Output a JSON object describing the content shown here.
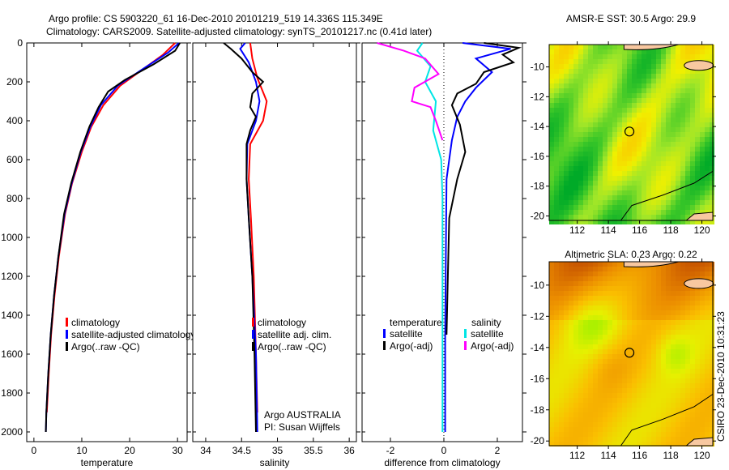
{
  "title_line1": "Argo profile: CS 5903220_61 16-Dec-2010 20101219_519 14.336S 115.349E",
  "title_line2": "Climatology: CARS2009. Satellite-adjusted climatology: synTS_20101217.nc (0.41d later)",
  "side_stamp": "CSIRO 23-Dec-2010 10:31:23",
  "colors": {
    "climatology": "#ff0000",
    "satellite": "#0000ff",
    "argo": "#000000",
    "sal_satellite": "#00e5e5",
    "sal_argo": "#ff00ff"
  },
  "chart_data": [
    {
      "type": "line",
      "id": "temperature",
      "xlabel": "temperature",
      "ylabel": "",
      "xlim": [
        -1.5,
        32
      ],
      "ylim": [
        2050,
        0
      ],
      "xticks": [
        "0",
        "10",
        "20",
        "30"
      ],
      "xtick_values": [
        0,
        10,
        20,
        30
      ],
      "yticks": [
        "0",
        "200",
        "400",
        "600",
        "800",
        "1000",
        "1200",
        "1400",
        "1600",
        "1800",
        "2000"
      ],
      "ytick_values": [
        0,
        200,
        400,
        600,
        800,
        1000,
        1200,
        1400,
        1600,
        1800,
        2000
      ],
      "legend": [
        "climatology",
        "satellite-adjusted climatology",
        "Argo(..raw -QC)"
      ],
      "series": [
        {
          "name": "climatology",
          "color": "#ff0000",
          "points": [
            [
              29.5,
              0
            ],
            [
              27,
              60
            ],
            [
              22.5,
              140
            ],
            [
              18,
              220
            ],
            [
              14.5,
              320
            ],
            [
              12,
              430
            ],
            [
              10,
              560
            ],
            [
              8,
              720
            ],
            [
              6.5,
              880
            ],
            [
              5.2,
              1100
            ],
            [
              4.3,
              1300
            ],
            [
              3.6,
              1500
            ],
            [
              3.1,
              1700
            ],
            [
              2.7,
              1900
            ]
          ]
        },
        {
          "name": "satellite-adjusted climatology",
          "color": "#0000ff",
          "points": [
            [
              30.3,
              0
            ],
            [
              28,
              50
            ],
            [
              23,
              130
            ],
            [
              17.5,
              220
            ],
            [
              14,
              320
            ],
            [
              11.8,
              430
            ],
            [
              9.8,
              560
            ],
            [
              7.9,
              720
            ],
            [
              6.4,
              880
            ],
            [
              5.1,
              1100
            ],
            [
              4.2,
              1300
            ],
            [
              3.5,
              1500
            ],
            [
              3,
              1700
            ],
            [
              2.6,
              1900
            ],
            [
              2.5,
              2000
            ]
          ]
        },
        {
          "name": "Argo(..raw -QC)",
          "color": "#000000",
          "points": [
            [
              30.5,
              0
            ],
            [
              29.5,
              40
            ],
            [
              25,
              110
            ],
            [
              19,
              190
            ],
            [
              15.5,
              250
            ],
            [
              13.5,
              330
            ],
            [
              11.6,
              430
            ],
            [
              9.7,
              560
            ],
            [
              7.8,
              720
            ],
            [
              6.3,
              880
            ],
            [
              5.1,
              1100
            ],
            [
              4.2,
              1300
            ],
            [
              3.5,
              1500
            ],
            [
              3,
              1700
            ],
            [
              2.6,
              1900
            ],
            [
              2.5,
              2000
            ]
          ]
        }
      ]
    },
    {
      "type": "line",
      "id": "salinity",
      "xlabel": "salinity",
      "xlim": [
        33.82,
        36.1
      ],
      "ylim": [
        2050,
        0
      ],
      "xticks": [
        "34",
        "34.5",
        "35",
        "35.5",
        "36"
      ],
      "xtick_values": [
        34,
        34.5,
        35,
        35.5,
        36
      ],
      "legend": [
        "climatology",
        "satellite adj. clim.",
        "Argo(..raw -QC)"
      ],
      "annotation": [
        "Argo AUSTRALIA",
        "PI: Susan Wijffels"
      ],
      "series": [
        {
          "name": "climatology",
          "color": "#ff0000",
          "points": [
            [
              34.62,
              0
            ],
            [
              34.65,
              80
            ],
            [
              34.72,
              180
            ],
            [
              34.85,
              300
            ],
            [
              34.8,
              400
            ],
            [
              34.62,
              520
            ],
            [
              34.6,
              700
            ],
            [
              34.63,
              900
            ],
            [
              34.67,
              1200
            ],
            [
              34.7,
              1600
            ],
            [
              34.72,
              1900
            ]
          ]
        },
        {
          "name": "satellite adj. clim.",
          "color": "#0000ff",
          "points": [
            [
              34.55,
              0
            ],
            [
              34.48,
              30
            ],
            [
              34.6,
              100
            ],
            [
              34.7,
              200
            ],
            [
              34.75,
              300
            ],
            [
              34.7,
              400
            ],
            [
              34.58,
              520
            ],
            [
              34.57,
              700
            ],
            [
              34.6,
              900
            ],
            [
              34.65,
              1200
            ],
            [
              34.7,
              1600
            ],
            [
              34.72,
              2000
            ]
          ]
        },
        {
          "name": "Argo(..raw -QC)",
          "color": "#000000",
          "points": [
            [
              34.25,
              0
            ],
            [
              34.35,
              30
            ],
            [
              34.5,
              80
            ],
            [
              34.65,
              150
            ],
            [
              34.8,
              200
            ],
            [
              34.65,
              260
            ],
            [
              34.62,
              330
            ],
            [
              34.7,
              380
            ],
            [
              34.62,
              450
            ],
            [
              34.57,
              520
            ],
            [
              34.57,
              700
            ],
            [
              34.6,
              900
            ],
            [
              34.65,
              1200
            ],
            [
              34.68,
              1600
            ],
            [
              34.7,
              2000
            ]
          ]
        }
      ]
    },
    {
      "type": "line",
      "id": "difference",
      "xlabel": "difference from climatology",
      "xlim": [
        -3.06,
        2.94
      ],
      "ylim": [
        2050,
        0
      ],
      "xticks": [
        "-2",
        "0",
        "2"
      ],
      "xtick_values": [
        -2,
        0,
        2
      ],
      "legend_temperature": {
        "title": "temperature",
        "items": [
          "satellite",
          "Argo(-adj)"
        ]
      },
      "legend_salinity": {
        "title": "salinity",
        "items": [
          "satellite",
          "Argo(-adj)"
        ]
      },
      "series": [
        {
          "name": "temperature satellite",
          "color": "#0000ff",
          "points": [
            [
              0.7,
              0
            ],
            [
              2.5,
              30
            ],
            [
              1.2,
              80
            ],
            [
              1.8,
              150
            ],
            [
              1.2,
              230
            ],
            [
              0.8,
              300
            ],
            [
              0.5,
              380
            ],
            [
              0.3,
              500
            ],
            [
              0.1,
              700
            ],
            [
              0.08,
              1000
            ],
            [
              0.05,
              1500
            ],
            [
              0.05,
              2000
            ]
          ]
        },
        {
          "name": "temperature Argo(-adj)",
          "color": "#000000",
          "points": [
            [
              1.5,
              0
            ],
            [
              2.8,
              25
            ],
            [
              2.2,
              60
            ],
            [
              2.6,
              100
            ],
            [
              1.5,
              150
            ],
            [
              1.2,
              210
            ],
            [
              0.5,
              260
            ],
            [
              0.3,
              320
            ],
            [
              0.6,
              420
            ],
            [
              0.8,
              560
            ],
            [
              0.5,
              700
            ],
            [
              0.2,
              900
            ],
            [
              0.15,
              1200
            ],
            [
              0.1,
              1500
            ]
          ]
        },
        {
          "name": "salinity satellite",
          "color": "#00e5e5",
          "points": [
            [
              -0.8,
              0
            ],
            [
              -1,
              40
            ],
            [
              -0.5,
              120
            ],
            [
              -0.7,
              200
            ],
            [
              -0.3,
              300
            ],
            [
              -0.4,
              450
            ],
            [
              -0.1,
              600
            ],
            [
              -0.05,
              800
            ],
            [
              -0.05,
              1500
            ],
            [
              -0.05,
              2000
            ]
          ]
        },
        {
          "name": "salinity Argo(-adj)",
          "color": "#ff00ff",
          "points": [
            [
              -2.5,
              0
            ],
            [
              -1.5,
              40
            ],
            [
              -0.7,
              80
            ],
            [
              -0.2,
              160
            ],
            [
              -1.1,
              230
            ],
            [
              -1.2,
              300
            ],
            [
              -0.5,
              330
            ],
            [
              -0.3,
              400
            ],
            [
              -0.05,
              500
            ]
          ]
        }
      ]
    },
    {
      "type": "heatmap",
      "id": "sst_map",
      "title": "AMSR-E SST: 30.5 Argo: 29.9",
      "xlim": [
        110.2,
        120.7
      ],
      "ylim": [
        -20.3,
        -8.5
      ],
      "xticks": [
        "112",
        "114",
        "116",
        "118",
        "120"
      ],
      "xtick_values": [
        112,
        114,
        116,
        118,
        120
      ],
      "yticks": [
        "-10",
        "-12",
        "-14",
        "-16",
        "-18",
        "-20"
      ],
      "ytick_values": [
        -10,
        -12,
        -14,
        -16,
        -18,
        -20
      ],
      "marker": {
        "lon": 115.349,
        "lat": -14.336
      }
    },
    {
      "type": "heatmap",
      "id": "sla_map",
      "title": "Altimetric SLA: 0.23 Argo: 0.22",
      "xlim": [
        110.2,
        120.7
      ],
      "ylim": [
        -20.3,
        -8.5
      ],
      "xticks": [
        "112",
        "114",
        "116",
        "118",
        "120"
      ],
      "xtick_values": [
        112,
        114,
        116,
        118,
        120
      ],
      "yticks": [
        "-10",
        "-12",
        "-14",
        "-16",
        "-18",
        "-20"
      ],
      "ytick_values": [
        -10,
        -12,
        -14,
        -16,
        -18,
        -20
      ],
      "marker": {
        "lon": 115.349,
        "lat": -14.336
      }
    }
  ]
}
